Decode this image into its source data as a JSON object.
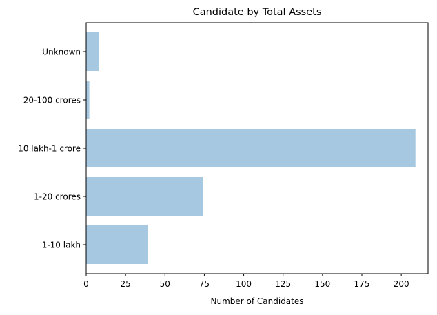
{
  "chart_data": {
    "type": "bar",
    "orientation": "horizontal",
    "title": "Candidate by Total Assets",
    "xlabel": "Number of Candidates",
    "ylabel": "",
    "categories": [
      "1-10 lakh",
      "1-20 crores",
      "10 lakh-1 crore",
      "20-100 crores",
      "Unknown"
    ],
    "values": [
      39,
      74,
      209,
      2,
      8
    ],
    "xlim": [
      0,
      217
    ],
    "xticks": [
      0,
      25,
      50,
      75,
      100,
      125,
      150,
      175,
      200
    ],
    "grid": false,
    "legend": "none",
    "bar_color": "#a6c8e0"
  }
}
